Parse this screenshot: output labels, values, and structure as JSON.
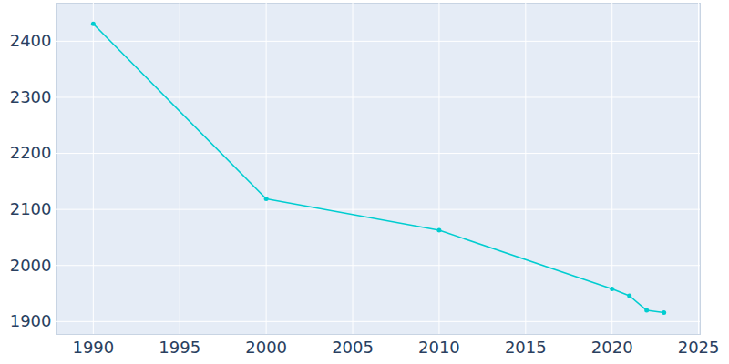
{
  "chart_data": {
    "type": "line",
    "x": [
      1990,
      2000,
      2010,
      2020,
      2021,
      2022,
      2023
    ],
    "values": [
      2431,
      2119,
      2063,
      1958,
      1946,
      1920,
      1916
    ],
    "color": "#00cdd0",
    "marker": "circle",
    "xlim": [
      1987.9,
      2025.1
    ],
    "xticks": [
      1990,
      1995,
      2000,
      2005,
      2010,
      2015,
      2020,
      2025
    ],
    "ylim": [
      1877,
      2468
    ],
    "yticks": [
      1900,
      2000,
      2100,
      2200,
      2300,
      2400
    ],
    "grid": true
  }
}
